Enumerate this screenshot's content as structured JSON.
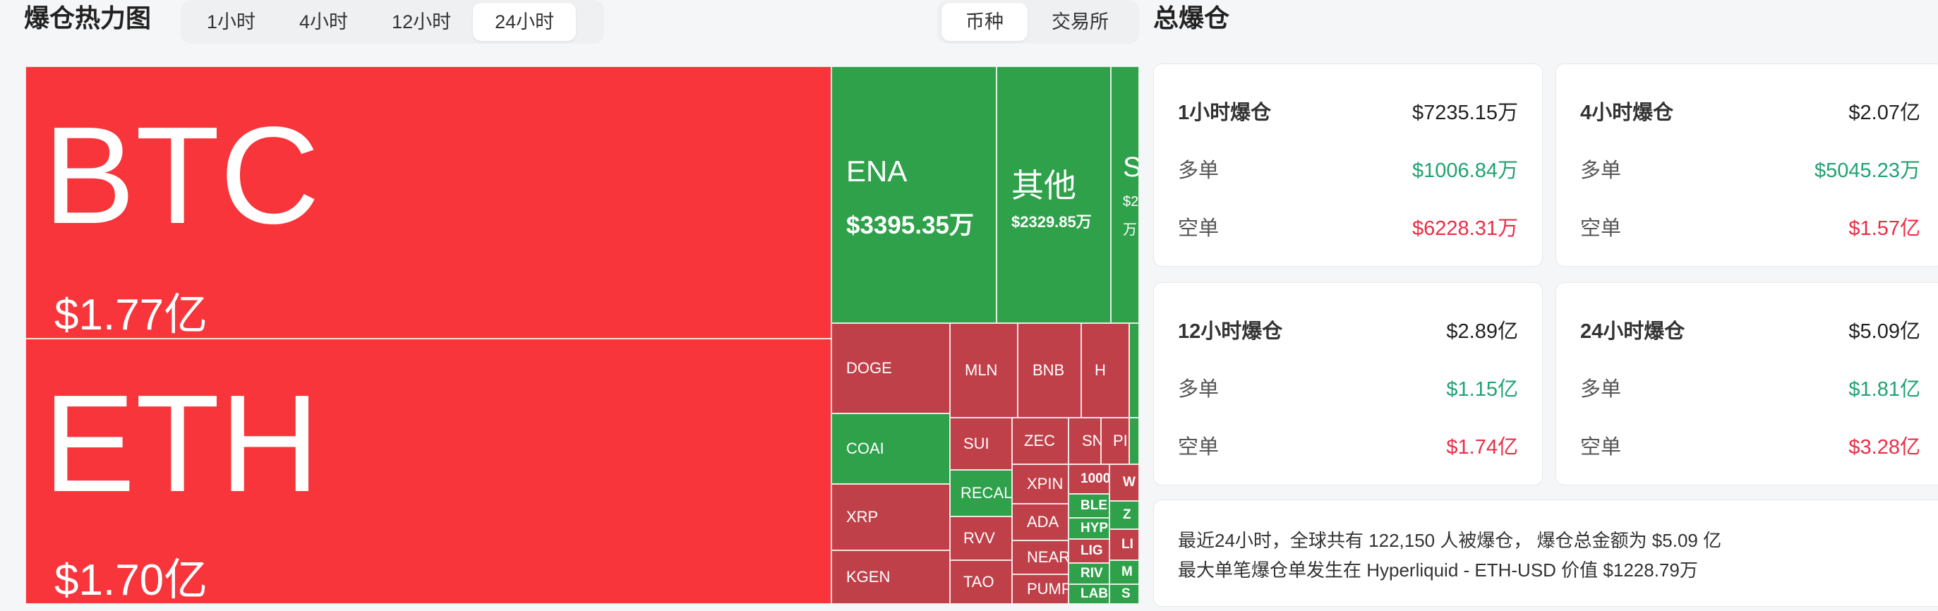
{
  "header": {
    "title": "爆仓热力图",
    "time_options": [
      "1小时",
      "4小时",
      "12小时",
      "24小时"
    ],
    "time_selected": "24小时",
    "view_options": [
      "币种",
      "交易所"
    ],
    "view_selected": "币种"
  },
  "treemap": {
    "colors": {
      "short_heavy": "#f7353b",
      "short": "#c0404a",
      "long": "#2fa14b"
    },
    "tiles": [
      {
        "symbol": "BTC",
        "amount": "$1.77亿"
      },
      {
        "symbol": "ETH",
        "amount": "$1.70亿"
      },
      {
        "symbol": "ENA",
        "amount": "$3395.35万"
      },
      {
        "symbol": "其他",
        "amount": "$2329.85万"
      },
      {
        "symbol": "S",
        "amount": "$2",
        "amount2": "万"
      },
      {
        "symbol": "DOGE"
      },
      {
        "symbol": "MLN"
      },
      {
        "symbol": "BNB"
      },
      {
        "symbol": "H"
      },
      {
        "symbol": "COAI"
      },
      {
        "symbol": "SUI"
      },
      {
        "symbol": "ZEC"
      },
      {
        "symbol": "SN"
      },
      {
        "symbol": "PI"
      },
      {
        "symbol": "RECAL"
      },
      {
        "symbol": "XPIN"
      },
      {
        "symbol": "1000"
      },
      {
        "symbol": "W"
      },
      {
        "symbol": "BLE"
      },
      {
        "symbol": "Z"
      },
      {
        "symbol": "XRP"
      },
      {
        "symbol": "ADA"
      },
      {
        "symbol": "HYP"
      },
      {
        "symbol": "RVV"
      },
      {
        "symbol": "NEAR"
      },
      {
        "symbol": "LIG"
      },
      {
        "symbol": "LI"
      },
      {
        "symbol": "KGEN"
      },
      {
        "symbol": "RIV"
      },
      {
        "symbol": "M"
      },
      {
        "symbol": "TAO"
      },
      {
        "symbol": "PUMP"
      },
      {
        "symbol": "LAB"
      },
      {
        "symbol": "S"
      }
    ]
  },
  "panel": {
    "title": "总爆仓",
    "cards": [
      {
        "label": "1小时爆仓",
        "total": "$7235.15万",
        "long_label": "多单",
        "long": "$1006.84万",
        "short_label": "空单",
        "short": "$6228.31万"
      },
      {
        "label": "4小时爆仓",
        "total": "$2.07亿",
        "long_label": "多单",
        "long": "$5045.23万",
        "short_label": "空单",
        "short": "$1.57亿"
      },
      {
        "label": "12小时爆仓",
        "total": "$2.89亿",
        "long_label": "多单",
        "long": "$1.15亿",
        "short_label": "空单",
        "short": "$1.74亿"
      },
      {
        "label": "24小时爆仓",
        "total": "$5.09亿",
        "long_label": "多单",
        "long": "$1.81亿",
        "short_label": "空单",
        "short": "$3.28亿"
      }
    ],
    "summary_line1": "最近24小时，全球共有 122,150 人被爆仓， 爆仓总金额为 $5.09 亿",
    "summary_line2": "最大单笔爆仓单发生在 Hyperliquid - ETH-USD 价值 $1228.79万"
  }
}
